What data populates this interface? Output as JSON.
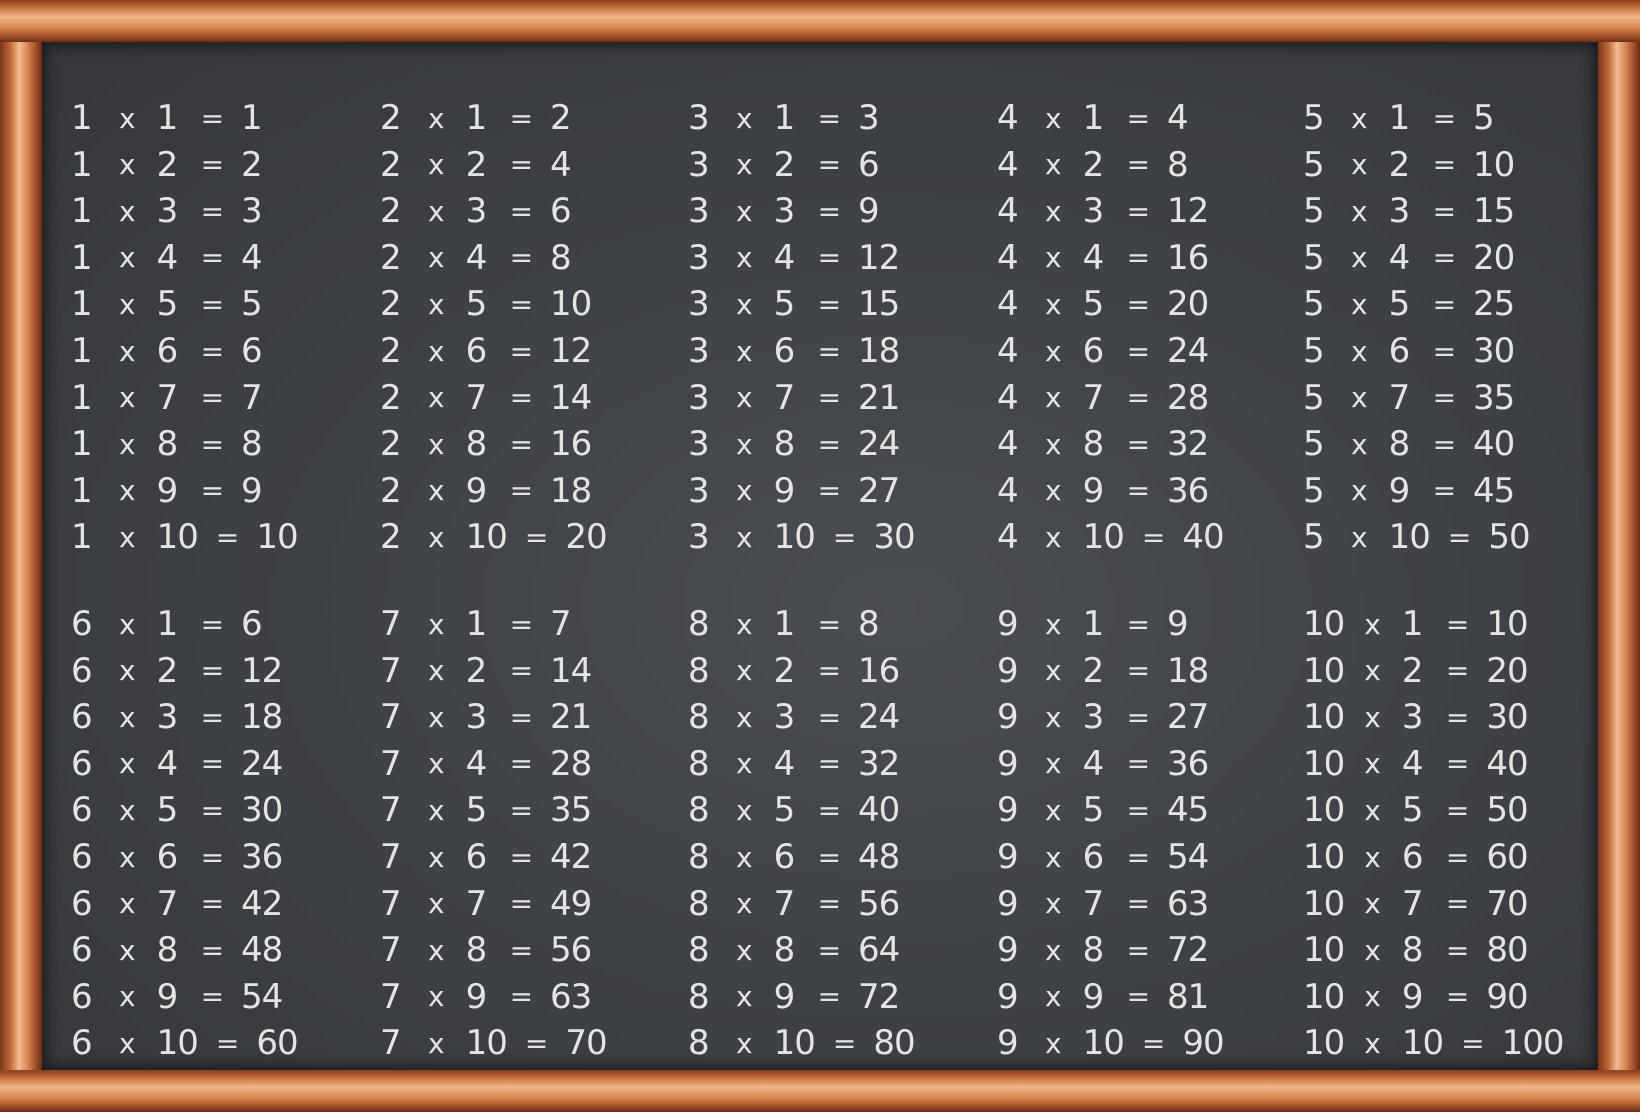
{
  "colors": {
    "board": "#3f4247",
    "chalk": "#e4e4e4",
    "frame": "#c9753f"
  },
  "operator": "x",
  "equals": "=",
  "tables": [
    {
      "n": "1",
      "rows": [
        {
          "b": "1",
          "r": "1"
        },
        {
          "b": "2",
          "r": "2"
        },
        {
          "b": "3",
          "r": "3"
        },
        {
          "b": "4",
          "r": "4"
        },
        {
          "b": "5",
          "r": "5"
        },
        {
          "b": "6",
          "r": "6"
        },
        {
          "b": "7",
          "r": "7"
        },
        {
          "b": "8",
          "r": "8"
        },
        {
          "b": "9",
          "r": "9"
        },
        {
          "b": "10",
          "r": "10"
        }
      ]
    },
    {
      "n": "2",
      "rows": [
        {
          "b": "1",
          "r": "2"
        },
        {
          "b": "2",
          "r": "4"
        },
        {
          "b": "3",
          "r": "6"
        },
        {
          "b": "4",
          "r": "8"
        },
        {
          "b": "5",
          "r": "10"
        },
        {
          "b": "6",
          "r": "12"
        },
        {
          "b": "7",
          "r": "14"
        },
        {
          "b": "8",
          "r": "16"
        },
        {
          "b": "9",
          "r": "18"
        },
        {
          "b": "10",
          "r": "20"
        }
      ]
    },
    {
      "n": "3",
      "rows": [
        {
          "b": "1",
          "r": "3"
        },
        {
          "b": "2",
          "r": "6"
        },
        {
          "b": "3",
          "r": "9"
        },
        {
          "b": "4",
          "r": "12"
        },
        {
          "b": "5",
          "r": "15"
        },
        {
          "b": "6",
          "r": "18"
        },
        {
          "b": "7",
          "r": "21"
        },
        {
          "b": "8",
          "r": "24"
        },
        {
          "b": "9",
          "r": "27"
        },
        {
          "b": "10",
          "r": "30"
        }
      ]
    },
    {
      "n": "4",
      "rows": [
        {
          "b": "1",
          "r": "4"
        },
        {
          "b": "2",
          "r": "8"
        },
        {
          "b": "3",
          "r": "12"
        },
        {
          "b": "4",
          "r": "16"
        },
        {
          "b": "5",
          "r": "20"
        },
        {
          "b": "6",
          "r": "24"
        },
        {
          "b": "7",
          "r": "28"
        },
        {
          "b": "8",
          "r": "32"
        },
        {
          "b": "9",
          "r": "36"
        },
        {
          "b": "10",
          "r": "40"
        }
      ]
    },
    {
      "n": "5",
      "rows": [
        {
          "b": "1",
          "r": "5"
        },
        {
          "b": "2",
          "r": "10"
        },
        {
          "b": "3",
          "r": "15"
        },
        {
          "b": "4",
          "r": "20"
        },
        {
          "b": "5",
          "r": "25"
        },
        {
          "b": "6",
          "r": "30"
        },
        {
          "b": "7",
          "r": "35"
        },
        {
          "b": "8",
          "r": "40"
        },
        {
          "b": "9",
          "r": "45"
        },
        {
          "b": "10",
          "r": "50"
        }
      ]
    },
    {
      "n": "6",
      "rows": [
        {
          "b": "1",
          "r": "6"
        },
        {
          "b": "2",
          "r": "12"
        },
        {
          "b": "3",
          "r": "18"
        },
        {
          "b": "4",
          "r": "24"
        },
        {
          "b": "5",
          "r": "30"
        },
        {
          "b": "6",
          "r": "36"
        },
        {
          "b": "7",
          "r": "42"
        },
        {
          "b": "8",
          "r": "48"
        },
        {
          "b": "9",
          "r": "54"
        },
        {
          "b": "10",
          "r": "60"
        }
      ]
    },
    {
      "n": "7",
      "rows": [
        {
          "b": "1",
          "r": "7"
        },
        {
          "b": "2",
          "r": "14"
        },
        {
          "b": "3",
          "r": "21"
        },
        {
          "b": "4",
          "r": "28"
        },
        {
          "b": "5",
          "r": "35"
        },
        {
          "b": "6",
          "r": "42"
        },
        {
          "b": "7",
          "r": "49"
        },
        {
          "b": "8",
          "r": "56"
        },
        {
          "b": "9",
          "r": "63"
        },
        {
          "b": "10",
          "r": "70"
        }
      ]
    },
    {
      "n": "8",
      "rows": [
        {
          "b": "1",
          "r": "8"
        },
        {
          "b": "2",
          "r": "16"
        },
        {
          "b": "3",
          "r": "24"
        },
        {
          "b": "4",
          "r": "32"
        },
        {
          "b": "5",
          "r": "40"
        },
        {
          "b": "6",
          "r": "48"
        },
        {
          "b": "7",
          "r": "56"
        },
        {
          "b": "8",
          "r": "64"
        },
        {
          "b": "9",
          "r": "72"
        },
        {
          "b": "10",
          "r": "80"
        }
      ]
    },
    {
      "n": "9",
      "rows": [
        {
          "b": "1",
          "r": "9"
        },
        {
          "b": "2",
          "r": "18"
        },
        {
          "b": "3",
          "r": "27"
        },
        {
          "b": "4",
          "r": "36"
        },
        {
          "b": "5",
          "r": "45"
        },
        {
          "b": "6",
          "r": "54"
        },
        {
          "b": "7",
          "r": "63"
        },
        {
          "b": "8",
          "r": "72"
        },
        {
          "b": "9",
          "r": "81"
        },
        {
          "b": "10",
          "r": "90"
        }
      ]
    },
    {
      "n": "10",
      "rows": [
        {
          "b": "1",
          "r": "10"
        },
        {
          "b": "2",
          "r": "20"
        },
        {
          "b": "3",
          "r": "30"
        },
        {
          "b": "4",
          "r": "40"
        },
        {
          "b": "5",
          "r": "50"
        },
        {
          "b": "6",
          "r": "60"
        },
        {
          "b": "7",
          "r": "70"
        },
        {
          "b": "8",
          "r": "80"
        },
        {
          "b": "9",
          "r": "90"
        },
        {
          "b": "10",
          "r": "100"
        }
      ]
    }
  ]
}
